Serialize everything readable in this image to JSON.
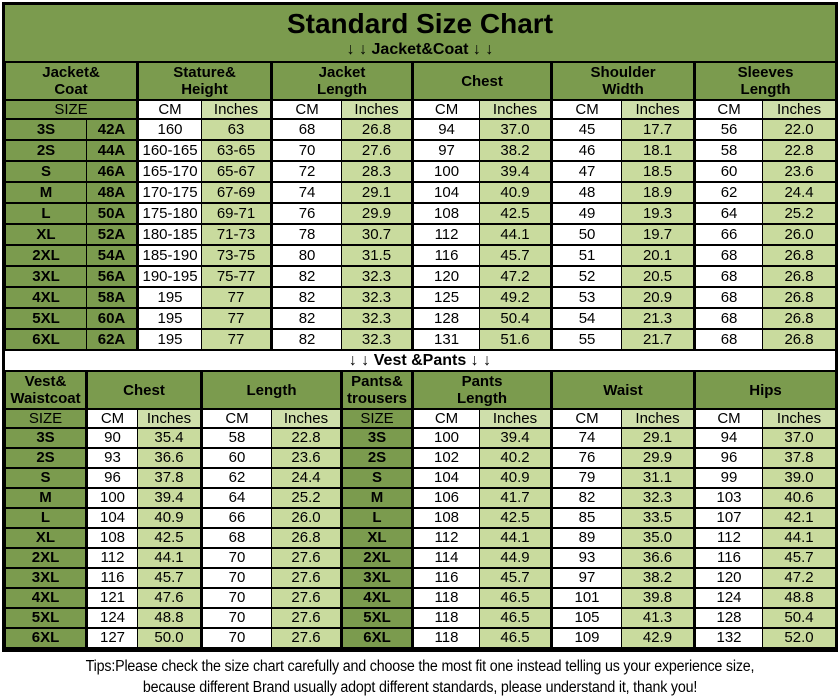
{
  "title": "Standard Size Chart",
  "colors": {
    "band_and_header_green": "#7b9b4e",
    "inches_light_green": "#c9db9e",
    "subheader_light_green": "#cfdfab",
    "cm_white": "#ffffff",
    "border_black": "#000000",
    "text_black": "#000000"
  },
  "labels": {
    "size": "SIZE",
    "cm": "CM",
    "inches": "Inches"
  },
  "section1": {
    "banner": "↓ ↓  Jacket&Coat ↓ ↓",
    "groups": [
      "Jacket&\nCoat",
      "Stature&\nHeight",
      "Jacket\nLength",
      "Chest",
      "Shoulder\nWidth",
      "Sleeves\nLength"
    ],
    "rows": [
      [
        "3S",
        "42A",
        "160",
        "63",
        "68",
        "26.8",
        "94",
        "37.0",
        "45",
        "17.7",
        "56",
        "22.0"
      ],
      [
        "2S",
        "44A",
        "160-165",
        "63-65",
        "70",
        "27.6",
        "97",
        "38.2",
        "46",
        "18.1",
        "58",
        "22.8"
      ],
      [
        "S",
        "46A",
        "165-170",
        "65-67",
        "72",
        "28.3",
        "100",
        "39.4",
        "47",
        "18.5",
        "60",
        "23.6"
      ],
      [
        "M",
        "48A",
        "170-175",
        "67-69",
        "74",
        "29.1",
        "104",
        "40.9",
        "48",
        "18.9",
        "62",
        "24.4"
      ],
      [
        "L",
        "50A",
        "175-180",
        "69-71",
        "76",
        "29.9",
        "108",
        "42.5",
        "49",
        "19.3",
        "64",
        "25.2"
      ],
      [
        "XL",
        "52A",
        "180-185",
        "71-73",
        "78",
        "30.7",
        "112",
        "44.1",
        "50",
        "19.7",
        "66",
        "26.0"
      ],
      [
        "2XL",
        "54A",
        "185-190",
        "73-75",
        "80",
        "31.5",
        "116",
        "45.7",
        "51",
        "20.1",
        "68",
        "26.8"
      ],
      [
        "3XL",
        "56A",
        "190-195",
        "75-77",
        "82",
        "32.3",
        "120",
        "47.2",
        "52",
        "20.5",
        "68",
        "26.8"
      ],
      [
        "4XL",
        "58A",
        "195",
        "77",
        "82",
        "32.3",
        "125",
        "49.2",
        "53",
        "20.9",
        "68",
        "26.8"
      ],
      [
        "5XL",
        "60A",
        "195",
        "77",
        "82",
        "32.3",
        "128",
        "50.4",
        "54",
        "21.3",
        "68",
        "26.8"
      ],
      [
        "6XL",
        "62A",
        "195",
        "77",
        "82",
        "32.3",
        "131",
        "51.6",
        "55",
        "21.7",
        "68",
        "26.8"
      ]
    ]
  },
  "section2": {
    "banner": "↓ ↓  Vest &Pants ↓ ↓",
    "groups": [
      "Vest&\nWaistcoat",
      "Chest",
      "Length",
      "Pants&\ntrousers",
      "Pants\nLength",
      "Waist",
      "Hips"
    ],
    "rows": [
      [
        "3S",
        "90",
        "35.4",
        "58",
        "22.8",
        "3S",
        "100",
        "39.4",
        "74",
        "29.1",
        "94",
        "37.0"
      ],
      [
        "2S",
        "93",
        "36.6",
        "60",
        "23.6",
        "2S",
        "102",
        "40.2",
        "76",
        "29.9",
        "96",
        "37.8"
      ],
      [
        "S",
        "96",
        "37.8",
        "62",
        "24.4",
        "S",
        "104",
        "40.9",
        "79",
        "31.1",
        "99",
        "39.0"
      ],
      [
        "M",
        "100",
        "39.4",
        "64",
        "25.2",
        "M",
        "106",
        "41.7",
        "82",
        "32.3",
        "103",
        "40.6"
      ],
      [
        "L",
        "104",
        "40.9",
        "66",
        "26.0",
        "L",
        "108",
        "42.5",
        "85",
        "33.5",
        "107",
        "42.1"
      ],
      [
        "XL",
        "108",
        "42.5",
        "68",
        "26.8",
        "XL",
        "112",
        "44.1",
        "89",
        "35.0",
        "112",
        "44.1"
      ],
      [
        "2XL",
        "112",
        "44.1",
        "70",
        "27.6",
        "2XL",
        "114",
        "44.9",
        "93",
        "36.6",
        "116",
        "45.7"
      ],
      [
        "3XL",
        "116",
        "45.7",
        "70",
        "27.6",
        "3XL",
        "116",
        "45.7",
        "97",
        "38.2",
        "120",
        "47.2"
      ],
      [
        "4XL",
        "121",
        "47.6",
        "70",
        "27.6",
        "4XL",
        "118",
        "46.5",
        "101",
        "39.8",
        "124",
        "48.8"
      ],
      [
        "5XL",
        "124",
        "48.8",
        "70",
        "27.6",
        "5XL",
        "118",
        "46.5",
        "105",
        "41.3",
        "128",
        "50.4"
      ],
      [
        "6XL",
        "127",
        "50.0",
        "70",
        "27.6",
        "6XL",
        "118",
        "46.5",
        "109",
        "42.9",
        "132",
        "52.0"
      ]
    ]
  },
  "footer": {
    "line1": "Tips:Please check the size chart carefully and choose the most fit one instead telling us your experience size,",
    "line2": "because different Brand usually adopt different standards, please understand it, thank you!"
  }
}
